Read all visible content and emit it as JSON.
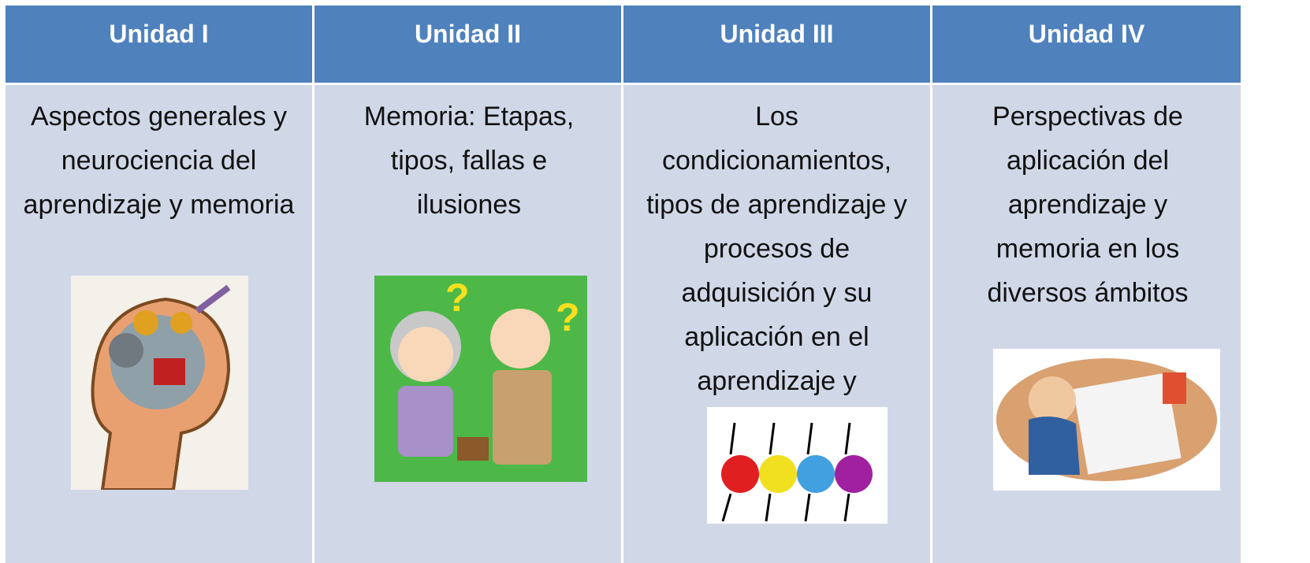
{
  "table": {
    "headers": [
      "Unidad I",
      "Unidad II",
      "Unidad III",
      "Unidad IV"
    ],
    "cells": [
      "Aspectos generales y neurociencia del aprendizaje y memoria",
      "Memoria: Etapas, tipos, fallas e ilusiones",
      "Los condicionamientos, tipos de aprendizaje y procesos de adquisición y su aplicación en el aprendizaje y memoria",
      "Perspectivas de aplicación del aprendizaje y memoria en los diversos ámbitos"
    ]
  }
}
